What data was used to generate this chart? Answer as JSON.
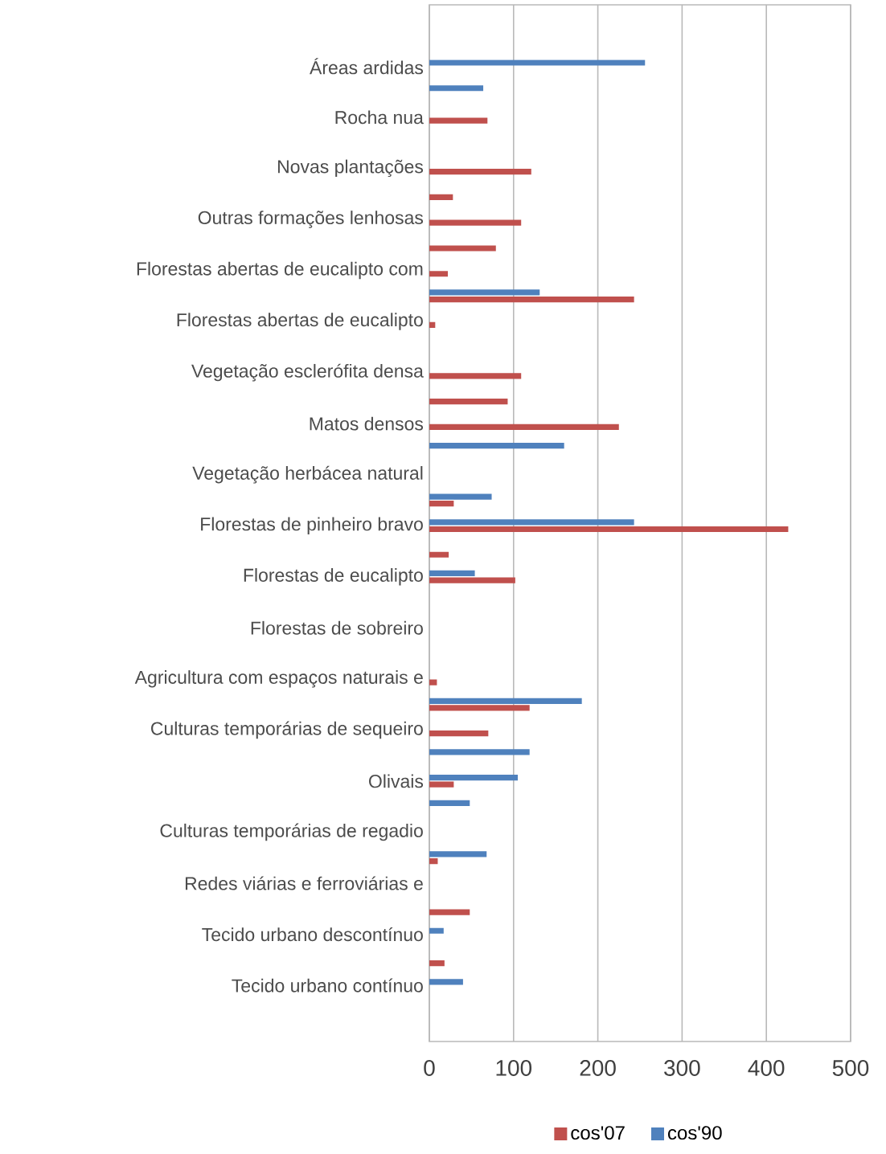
{
  "chart_data": {
    "type": "bar",
    "orientation": "horizontal",
    "categories": [
      "Áreas ardidas",
      null,
      "Rocha nua",
      null,
      "Novas plantações",
      null,
      "Outras formações lenhosas",
      null,
      "Florestas abertas de eucalipto com",
      null,
      "Florestas abertas de eucalipto",
      null,
      "Vegetação esclerófita densa",
      null,
      "Matos densos",
      null,
      "Vegetação herbácea natural",
      null,
      "Florestas de pinheiro bravo",
      null,
      "Florestas de eucalipto",
      null,
      "Florestas de sobreiro",
      null,
      "Agricultura com espaços naturais e",
      null,
      "Culturas temporárias de sequeiro",
      null,
      "Olivais",
      null,
      "Culturas temporárias de regadio",
      null,
      "Redes viárias e ferroviárias e",
      null,
      "Tecido urbano descontínuo",
      null,
      "Tecido urbano contínuo"
    ],
    "series": [
      {
        "name": "cos'07",
        "color": "#c0504d",
        "values": [
          0,
          0,
          69,
          0,
          121,
          28,
          109,
          79,
          22,
          243,
          7,
          0,
          109,
          93,
          225,
          0,
          0,
          29,
          426,
          23,
          102,
          0,
          0,
          0,
          9,
          119,
          70,
          0,
          29,
          0,
          0,
          10,
          0,
          48,
          0,
          18,
          0
        ]
      },
      {
        "name": "cos'90",
        "color": "#4f81bd",
        "values": [
          256,
          64,
          0,
          0,
          0,
          0,
          0,
          0,
          0,
          131,
          0,
          0,
          0,
          0,
          0,
          160,
          0,
          74,
          243,
          0,
          54,
          0,
          0,
          0,
          0,
          181,
          0,
          119,
          105,
          48,
          0,
          68,
          0,
          0,
          17,
          0,
          40
        ]
      }
    ],
    "xlim": [
      0,
      500
    ],
    "xticks": [
      0,
      100,
      200,
      300,
      400,
      500
    ],
    "grid": "x",
    "legend": "bottom"
  }
}
